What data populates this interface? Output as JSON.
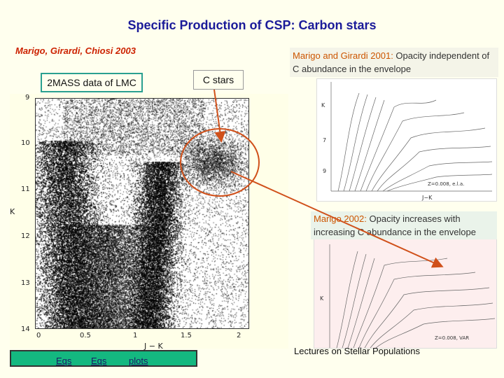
{
  "title": "Specific Production of CSP: Carbon stars",
  "authors": "Marigo, Girardi, Chiosi 2003",
  "label_2mass": "2MASS data of LMC",
  "label_cstars": "C stars",
  "note1": {
    "source": "Marigo and Girardi 2001:",
    "text": " Opacity independent of C abundance in the envelope"
  },
  "note2": {
    "source": "Marigo 2002:",
    "text": "  Opacity increases with increasing C abundance in the envelope"
  },
  "cmd": {
    "yticks": [
      "9",
      "10",
      "11",
      "12",
      "13",
      "14"
    ],
    "xticks": [
      "0",
      "0.5",
      "1",
      "1.5",
      "2"
    ],
    "ylabel": "K",
    "xlabel": "J − K"
  },
  "iso_top_label": "Z=0.008, e.l.a.",
  "iso_bot_label": "Z=0.008, VAR",
  "buttons": [
    "Eqs",
    "Eqs",
    "plots"
  ],
  "footer": "Lectures on Stellar Populations",
  "colors": {
    "title": "#1a1a99",
    "authors": "#cc2200",
    "arrow": "#d0501a",
    "button_bar": "#14b880"
  }
}
